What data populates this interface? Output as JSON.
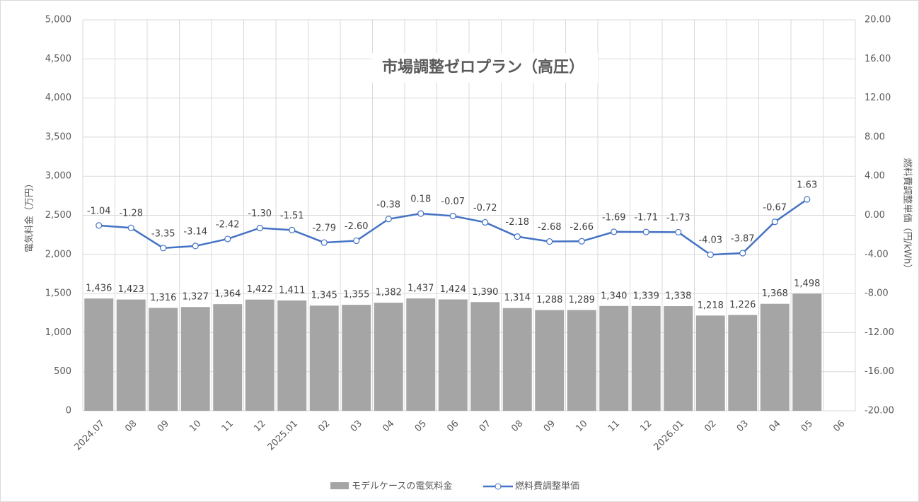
{
  "chart_data": {
    "type": "bar_line",
    "title": "市場調整ゼロプラン（高圧）",
    "y_label": "電気料金（万円）",
    "y2_label": "燃料費調整単価（円/kWh）",
    "categories": [
      "2024.07",
      "08",
      "09",
      "10",
      "11",
      "12",
      "2025.01",
      "02",
      "03",
      "04",
      "05",
      "06",
      "07",
      "08",
      "09",
      "10",
      "11",
      "12",
      "2026.01",
      "02",
      "03",
      "04",
      "05",
      "06"
    ],
    "series": [
      {
        "name": "モデルケースの電気料金",
        "type": "bar",
        "color": "#a5a5a5",
        "values": [
          1436,
          1423,
          1316,
          1327,
          1364,
          1422,
          1411,
          1345,
          1355,
          1382,
          1437,
          1424,
          1390,
          1314,
          1288,
          1289,
          1340,
          1339,
          1338,
          1218,
          1226,
          1368,
          1498,
          null
        ],
        "value_labels": [
          "1,436",
          "1,423",
          "1,316",
          "1,327",
          "1,364",
          "1,422",
          "1,411",
          "1,345",
          "1,355",
          "1,382",
          "1,437",
          "1,424",
          "1,390",
          "1,314",
          "1,288",
          "1,289",
          "1,340",
          "1,339",
          "1,338",
          "1,218",
          "1,226",
          "1,368",
          "1,498",
          null
        ]
      },
      {
        "name": "燃料費調整単価",
        "type": "line",
        "axis": "y2",
        "color": "#4472c4",
        "values": [
          -1.04,
          -1.28,
          -3.35,
          -3.14,
          -2.42,
          -1.3,
          -1.51,
          -2.79,
          -2.6,
          -0.38,
          0.18,
          -0.07,
          -0.72,
          -2.18,
          -2.68,
          -2.66,
          -1.69,
          -1.71,
          -1.73,
          -4.03,
          -3.87,
          -0.67,
          1.63,
          null
        ],
        "value_labels": [
          "-1.04",
          "-1.28",
          "-3.35",
          "-3.14",
          "-2.42",
          "-1.30",
          "-1.51",
          "-2.79",
          "-2.60",
          "-0.38",
          "0.18",
          "-0.07",
          "-0.72",
          "-2.18",
          "-2.68",
          "-2.66",
          "-1.69",
          "-1.71",
          "-1.73",
          "-4.03",
          "-3.87",
          "-0.67",
          "1.63",
          null
        ]
      }
    ],
    "ylim": [
      0,
      5000
    ],
    "yticks": [
      0,
      500,
      {
        "value": 1000,
        "label": "1,000"
      },
      {
        "value": 1500,
        "label": "1,500"
      },
      {
        "value": 2000,
        "label": "2,000"
      },
      {
        "value": 2500,
        "label": "2,500"
      },
      {
        "value": 3000,
        "label": "3,000"
      },
      {
        "value": 3500,
        "label": "3,500"
      },
      {
        "value": 4000,
        "label": "4,000"
      },
      {
        "value": 4500,
        "label": "4,500"
      },
      {
        "value": 5000,
        "label": "5,000"
      }
    ],
    "y2lim": [
      -20,
      20
    ],
    "y2ticks": [
      {
        "value": -20,
        "label": "-20.00"
      },
      {
        "value": -16,
        "label": "-16.00"
      },
      {
        "value": -12,
        "label": "-12.00"
      },
      {
        "value": -8,
        "label": "-8.00"
      },
      {
        "value": -4,
        "label": "-4.00"
      },
      {
        "value": 0,
        "label": "0.00"
      },
      {
        "value": 4,
        "label": "4.00"
      },
      {
        "value": 8,
        "label": "8.00"
      },
      {
        "value": 12,
        "label": "12.00"
      },
      {
        "value": 16,
        "label": "16.00"
      },
      {
        "value": 20,
        "label": "20.00"
      }
    ],
    "grid": true,
    "legend": "bottom"
  }
}
